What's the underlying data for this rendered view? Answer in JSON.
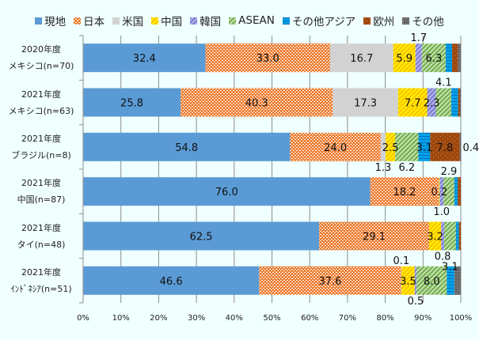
{
  "chart_data": {
    "type": "bar",
    "orientation": "horizontal",
    "stacked": true,
    "percent": true,
    "title": "",
    "xlabel": "",
    "ylabel": "",
    "xlim": [
      0,
      100
    ],
    "xticks": [
      "0%",
      "10%",
      "20%",
      "30%",
      "40%",
      "50%",
      "60%",
      "70%",
      "80%",
      "90%",
      "100%"
    ],
    "grid": true,
    "legend_position": "top",
    "categories": [
      {
        "line1": "2020年度",
        "line2": "メキシコ(n=70)"
      },
      {
        "line1": "2021年度",
        "line2": "メキシコ(n=63)"
      },
      {
        "line1": "2021年度",
        "line2": "ブラジル(n=8)"
      },
      {
        "line1": "2021年度",
        "line2": "中国(n=87)"
      },
      {
        "line1": "2021年度",
        "line2": "タイ(n=48)"
      },
      {
        "line1": "2021年度",
        "line2": "ｲﾝﾄﾞﾈｼｱ(n=51)"
      }
    ],
    "series": [
      {
        "name": "現地",
        "color": "#5b9bd5",
        "pattern": "solid",
        "values": [
          32.4,
          25.8,
          54.8,
          76.0,
          62.5,
          46.6
        ],
        "labels": [
          "32.4",
          "25.8",
          "54.8",
          "76.0",
          "62.5",
          "46.6"
        ]
      },
      {
        "name": "日本",
        "color": "#ed7d31",
        "pattern": "dots",
        "values": [
          33.0,
          40.3,
          24.0,
          18.2,
          29.1,
          37.6
        ],
        "labels": [
          "33.0",
          "40.3",
          "24.0",
          "18.2",
          "29.1",
          "37.6"
        ]
      },
      {
        "name": "米国",
        "color": "#a5a5a5",
        "pattern": "checker",
        "values": [
          16.7,
          17.3,
          1.3,
          0.0,
          0.0,
          0.1
        ],
        "labels": [
          "16.7",
          "17.3",
          "1.3",
          "",
          "",
          "0.1"
        ]
      },
      {
        "name": "中国",
        "color": "#ffd700",
        "pattern": "diag",
        "values": [
          5.9,
          7.7,
          2.5,
          0.2,
          3.2,
          3.5
        ],
        "labels": [
          "5.9",
          "7.7",
          "2.5",
          "0.2",
          "3.2",
          "3.5"
        ]
      },
      {
        "name": "韓国",
        "color": "#7b7bd0",
        "pattern": "diag",
        "values": [
          1.7,
          2.3,
          0.0,
          1.0,
          0.8,
          0.5
        ],
        "labels": [
          "1.7",
          "2.3",
          "",
          "1.0",
          "0.8",
          "0.5"
        ]
      },
      {
        "name": "ASEAN",
        "color": "#70ad47",
        "pattern": "diag",
        "values": [
          6.3,
          4.1,
          6.2,
          2.9,
          3.1,
          8.0
        ],
        "labels": [
          "6.3",
          "4.1",
          "6.2",
          "2.9",
          "3.1",
          "8.0"
        ]
      },
      {
        "name": "その他アジア",
        "color": "#00a2e8",
        "pattern": "hlines",
        "values": [
          1.7,
          1.8,
          3.1,
          0.9,
          0.8,
          2.0
        ],
        "labels": [
          "",
          "",
          "3.1",
          "",
          "",
          ""
        ]
      },
      {
        "name": "欧州",
        "color": "#9e480e",
        "pattern": "sparse-dots",
        "values": [
          1.5,
          0.5,
          7.8,
          0.8,
          0.5,
          0.0
        ],
        "labels": [
          "",
          "",
          "7.8",
          "",
          "",
          ""
        ]
      },
      {
        "name": "その他",
        "color": "#636363",
        "pattern": "dots-light",
        "values": [
          0.8,
          0.2,
          0.4,
          0.0,
          0.0,
          1.7
        ],
        "labels": [
          "",
          "",
          "0.4",
          "",
          "",
          ""
        ]
      }
    ],
    "label_offsets_note": "outside labels: Brazil 米国 1.3 below bar; China 韓国 1.0 below bar; Thailand 韓国 0.8 below bar; Indonesia 米国 0.1 above bar; Indonesia 韓国 0.5 below bar; Brazil その他 0.4 right of bar"
  }
}
